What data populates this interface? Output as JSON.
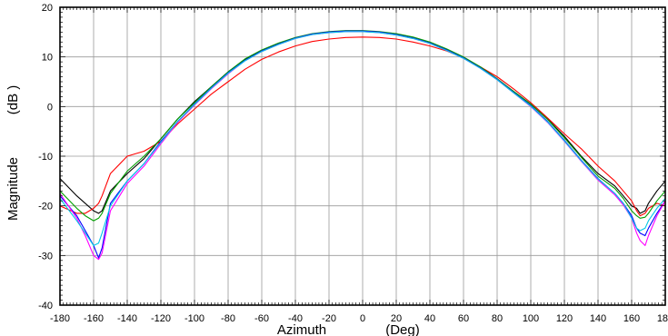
{
  "chart_data": {
    "type": "line",
    "title": "",
    "xlabel": "Azimuth",
    "xlabel_unit": "(Deg)",
    "ylabel": "Magnitude",
    "ylabel_unit": "(dB  )",
    "xlim": [
      -180,
      180
    ],
    "ylim": [
      -40,
      20
    ],
    "x_ticks": [
      -180,
      -160,
      -140,
      -120,
      -100,
      -80,
      -60,
      -40,
      -20,
      0,
      20,
      40,
      60,
      80,
      100,
      120,
      140,
      160,
      180
    ],
    "x_tick_labels": [
      "-180",
      "-160",
      "-140",
      "-120",
      "-100",
      "-80",
      "-60",
      "-40",
      "-20",
      "0",
      "20",
      "40",
      "60",
      "80",
      "100",
      "120",
      "140",
      "160",
      "180"
    ],
    "y_ticks": [
      -40,
      -30,
      -20,
      -10,
      0,
      10,
      20
    ],
    "y_tick_labels": [
      "-40",
      "-30",
      "-20",
      "-10",
      "0",
      "10",
      "20"
    ],
    "grid": true,
    "legend": "none",
    "x": [
      -180,
      -170,
      -165,
      -160,
      -157,
      -155,
      -150,
      -140,
      -130,
      -120,
      -110,
      -100,
      -90,
      -80,
      -70,
      -60,
      -50,
      -40,
      -30,
      -20,
      -10,
      0,
      10,
      20,
      30,
      40,
      50,
      60,
      70,
      80,
      90,
      100,
      110,
      120,
      130,
      140,
      150,
      155,
      160,
      163,
      165,
      168,
      170,
      175,
      180
    ],
    "series": [
      {
        "color": "#000000",
        "values": [
          -14.5,
          -18,
          -19.5,
          -21,
          -21.5,
          -21,
          -17,
          -13.5,
          -10.5,
          -6.5,
          -2.5,
          1,
          4,
          7,
          9.5,
          11.2,
          12.7,
          13.8,
          14.6,
          15,
          15.2,
          15.2,
          15,
          14.6,
          13.8,
          12.8,
          11.4,
          9.8,
          7.8,
          5.5,
          3,
          0.5,
          -2.5,
          -6,
          -10,
          -13.5,
          -16,
          -18,
          -20,
          -20.5,
          -21.5,
          -21,
          -19.5,
          -17,
          -15
        ]
      },
      {
        "color": "#ff0000",
        "values": [
          -20,
          -21.5,
          -21.5,
          -20.5,
          -19.5,
          -18,
          -13.5,
          -10,
          -9,
          -7,
          -3.5,
          -0.5,
          2.5,
          5,
          7.5,
          9.5,
          11,
          12.2,
          13.1,
          13.6,
          13.9,
          14,
          13.9,
          13.6,
          13,
          12.2,
          11.2,
          9.8,
          8,
          6,
          3.5,
          0.8,
          -2.3,
          -5.5,
          -8.5,
          -12,
          -15,
          -17,
          -19,
          -21,
          -22,
          -21.5,
          -20.5,
          -19.5,
          -20
        ]
      },
      {
        "color": "#00a000",
        "values": [
          -17,
          -20.5,
          -22,
          -23,
          -22.5,
          -21.5,
          -17.5,
          -13,
          -10,
          -6.5,
          -2.5,
          0.8,
          4,
          7,
          9.6,
          11.4,
          12.8,
          13.9,
          14.7,
          15.1,
          15.3,
          15.3,
          15.1,
          14.7,
          14,
          13,
          11.6,
          10,
          8,
          5.6,
          3,
          0.5,
          -2.6,
          -6.3,
          -10.2,
          -14,
          -16.5,
          -18.5,
          -21,
          -22,
          -22.5,
          -22.3,
          -21.5,
          -19,
          -17
        ]
      },
      {
        "color": "#0000ff",
        "values": [
          -18,
          -22,
          -25,
          -28,
          -30.5,
          -28.5,
          -19.5,
          -15,
          -11.5,
          -7,
          -3,
          0.5,
          3.8,
          6.8,
          9.3,
          11.2,
          12.6,
          13.8,
          14.6,
          15,
          15.2,
          15.2,
          15,
          14.5,
          13.8,
          12.8,
          11.4,
          9.8,
          7.8,
          5.5,
          2.8,
          0.2,
          -3,
          -6.8,
          -10.8,
          -14.5,
          -17.5,
          -19.5,
          -22,
          -24.5,
          -25.5,
          -26,
          -24.5,
          -21.5,
          -19
        ]
      },
      {
        "color": "#ff00ff",
        "values": [
          -17.5,
          -22.5,
          -26,
          -30,
          -30.8,
          -29.5,
          -21,
          -15.5,
          -12,
          -7.5,
          -3.2,
          0.3,
          3.6,
          6.6,
          9.2,
          11.1,
          12.5,
          13.7,
          14.5,
          14.9,
          15.1,
          15.1,
          14.9,
          14.4,
          13.7,
          12.7,
          11.3,
          9.7,
          7.7,
          5.4,
          2.7,
          0,
          -3.2,
          -7,
          -11,
          -14.8,
          -17.8,
          -19.8,
          -22.5,
          -25.5,
          -27,
          -28,
          -26,
          -22,
          -19
        ]
      },
      {
        "color": "#00c8e6",
        "values": [
          -18.5,
          -23,
          -25.5,
          -28,
          -27.5,
          -25.5,
          -20,
          -15,
          -11.5,
          -7.2,
          -3,
          0.4,
          3.7,
          6.7,
          9.2,
          11.1,
          12.5,
          13.7,
          14.5,
          14.9,
          15.1,
          15.1,
          14.9,
          14.4,
          13.7,
          12.7,
          11.3,
          9.7,
          7.7,
          5.4,
          2.7,
          0.1,
          -3.1,
          -6.9,
          -10.9,
          -14.6,
          -17.5,
          -19.5,
          -22.5,
          -24.5,
          -25,
          -24.5,
          -23,
          -20.5,
          -18.5
        ]
      }
    ]
  }
}
